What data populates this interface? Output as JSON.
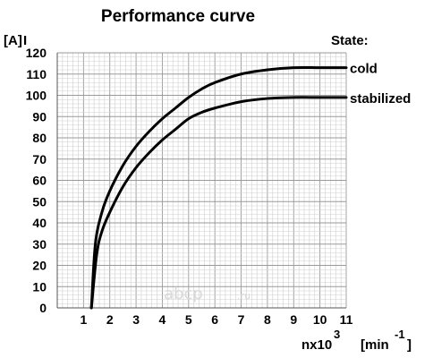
{
  "chart_data": {
    "type": "line",
    "title": "Performance curve",
    "ylabel_unit": "[A]",
    "ylabel": "I",
    "xlabel": "nx10",
    "xlabel_exp": "3",
    "xlabel_unit": "[min",
    "xlabel_unit_exp": "-1",
    "xlabel_unit_close": "]",
    "legend_title": "State:",
    "xlim": [
      0,
      11
    ],
    "ylim": [
      0,
      120
    ],
    "grid": true,
    "x_ticks": [
      "1",
      "2",
      "3",
      "4",
      "5",
      "6",
      "7",
      "8",
      "9",
      "10",
      "11"
    ],
    "y_ticks": [
      "0",
      "10",
      "20",
      "30",
      "40",
      "50",
      "60",
      "70",
      "80",
      "90",
      "100",
      "110",
      "120"
    ],
    "series": [
      {
        "name": "cold",
        "x": [
          1.3,
          1.45,
          1.7,
          2.0,
          2.5,
          3.0,
          3.5,
          4.0,
          4.5,
          5.0,
          5.5,
          6.0,
          7.0,
          8.0,
          9.0,
          10.0,
          11.0
        ],
        "y": [
          0,
          30,
          45,
          55,
          67,
          76,
          83,
          89,
          94,
          99,
          103,
          106,
          110,
          112,
          113,
          113,
          113
        ]
      },
      {
        "name": "stabilized",
        "x": [
          1.3,
          1.5,
          1.7,
          2.0,
          2.5,
          3.0,
          3.5,
          4.0,
          4.5,
          5.0,
          5.5,
          6.0,
          7.0,
          8.0,
          9.0,
          10.0,
          11.0
        ],
        "y": [
          0,
          25,
          36,
          45,
          57,
          66,
          73,
          79,
          84,
          89,
          92,
          94,
          97,
          98.5,
          99,
          99,
          99
        ]
      }
    ]
  },
  "watermark": {
    "text": "аbcp",
    "suffix": ".ru"
  }
}
